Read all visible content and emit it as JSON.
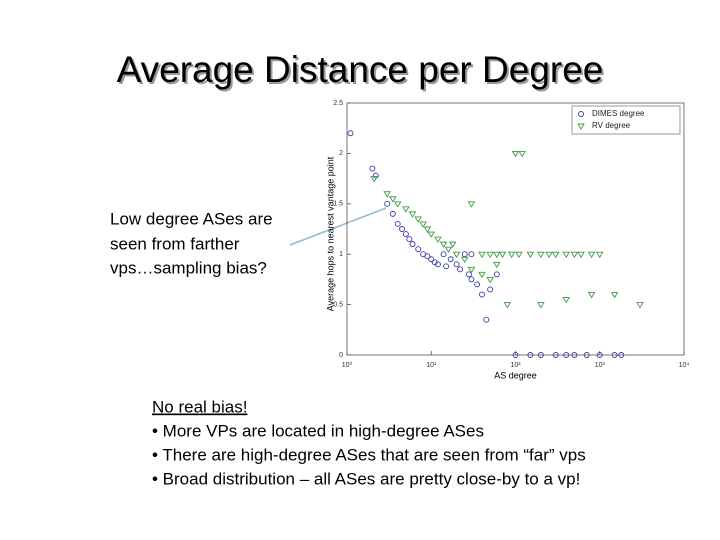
{
  "slide": {
    "title": "Average Distance per Degree",
    "callout": [
      "Low degree ASes are",
      "seen from farther",
      "vps…sampling bias?"
    ],
    "notes": [
      "No real bias!",
      "• More VPs are located in high-degree  ASes",
      "• There are high-degree ASes that are seen from “far” vps",
      "• Broad distribution – all ASes are pretty close-by to a vp!"
    ]
  },
  "chart_data": {
    "type": "scatter",
    "x_label": "AS degree",
    "y_label": "Average hops to nearest vantage point",
    "xscale": "log",
    "xlim": [
      1,
      10000
    ],
    "xticks": [
      {
        "value": 1,
        "label": "10⁰"
      },
      {
        "value": 10,
        "label": "10¹"
      },
      {
        "value": 100,
        "label": "10²"
      },
      {
        "value": 1000,
        "label": "10³"
      },
      {
        "value": 10000,
        "label": "10⁴"
      }
    ],
    "ylim": [
      0,
      2.5
    ],
    "yticks": [
      0,
      0.5,
      1,
      1.5,
      2,
      2.5
    ],
    "legend": "upper right",
    "series": [
      {
        "name": "DIMES degree",
        "color": "#3a3aa8",
        "marker": "circle",
        "x": [
          1.1,
          2.0,
          2.2,
          3,
          3.5,
          4,
          4.5,
          5,
          5.5,
          6,
          7,
          8,
          9,
          10,
          11,
          12,
          14,
          15,
          17,
          20,
          22,
          25,
          28,
          30,
          35,
          40,
          45,
          50,
          60,
          30,
          100,
          150,
          200,
          300,
          400,
          500,
          700,
          1000,
          1500,
          1800
        ],
        "values": [
          2.2,
          1.85,
          1.78,
          1.5,
          1.4,
          1.3,
          1.25,
          1.2,
          1.15,
          1.1,
          1.05,
          1.0,
          0.98,
          0.95,
          0.92,
          0.9,
          1.0,
          0.88,
          0.95,
          0.9,
          0.85,
          1.0,
          0.8,
          0.75,
          0.7,
          0.6,
          0.35,
          0.65,
          0.8,
          1.0,
          0,
          0,
          0,
          0,
          0,
          0,
          0,
          0,
          0,
          0
        ]
      },
      {
        "name": "RV degree",
        "color": "#3f9a3f",
        "marker": "triangle",
        "x": [
          2.1,
          3,
          3.5,
          4,
          5,
          6,
          7,
          8,
          9,
          10,
          12,
          14,
          16,
          18,
          20,
          25,
          30,
          30,
          40,
          50,
          60,
          80,
          100,
          120,
          40,
          50,
          60,
          70,
          90,
          110,
          150,
          200,
          250,
          300,
          400,
          500,
          600,
          800,
          1000,
          200,
          400,
          800,
          1500,
          3000
        ],
        "values": [
          1.75,
          1.6,
          1.55,
          1.5,
          1.45,
          1.4,
          1.35,
          1.3,
          1.25,
          1.2,
          1.15,
          1.1,
          1.05,
          1.1,
          1.0,
          0.95,
          1.5,
          0.85,
          0.8,
          0.75,
          0.9,
          0.5,
          2.0,
          2.0,
          1.0,
          1.0,
          1.0,
          1.0,
          1.0,
          1.0,
          1.0,
          1.0,
          1.0,
          1.0,
          1.0,
          1.0,
          1.0,
          1.0,
          1.0,
          0.5,
          0.55,
          0.6,
          0.6,
          0.5
        ]
      }
    ]
  }
}
